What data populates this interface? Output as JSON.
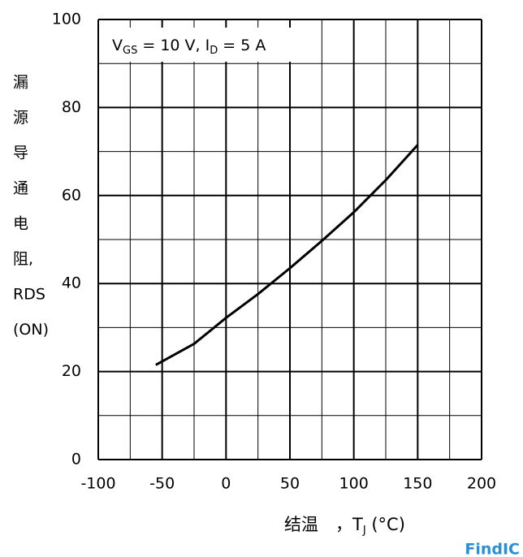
{
  "chart_data": {
    "type": "line",
    "annotation_parts": [
      "V",
      "GS",
      " = 10 V,  I",
      "D",
      " = 5 A"
    ],
    "ylabel_lines": [
      "漏",
      "源",
      "导",
      "通",
      "电",
      "阻,",
      "RDS",
      "(ON)"
    ],
    "xlabel_parts": [
      "结温　，T",
      "J",
      " (°C)"
    ],
    "watermark": "FindIC",
    "x": [
      -55,
      -25,
      0,
      25,
      50,
      75,
      100,
      125,
      150
    ],
    "series": [
      {
        "color": "#000000",
        "values": [
          21.5,
          26.3,
          32.2,
          37.6,
          43.5,
          49.7,
          56.2,
          63.5,
          71.5
        ]
      }
    ],
    "xlim": [
      -100,
      200
    ],
    "xticks": [
      -100,
      -50,
      0,
      50,
      100,
      150,
      200
    ],
    "ylim": [
      0,
      100
    ],
    "yticks": [
      0,
      20,
      40,
      60,
      80,
      100
    ],
    "xgrid_minor": [
      -75,
      -25,
      25,
      75,
      125,
      175
    ],
    "ygrid_minor": [
      10,
      30,
      50,
      70,
      90
    ],
    "grid": true
  }
}
